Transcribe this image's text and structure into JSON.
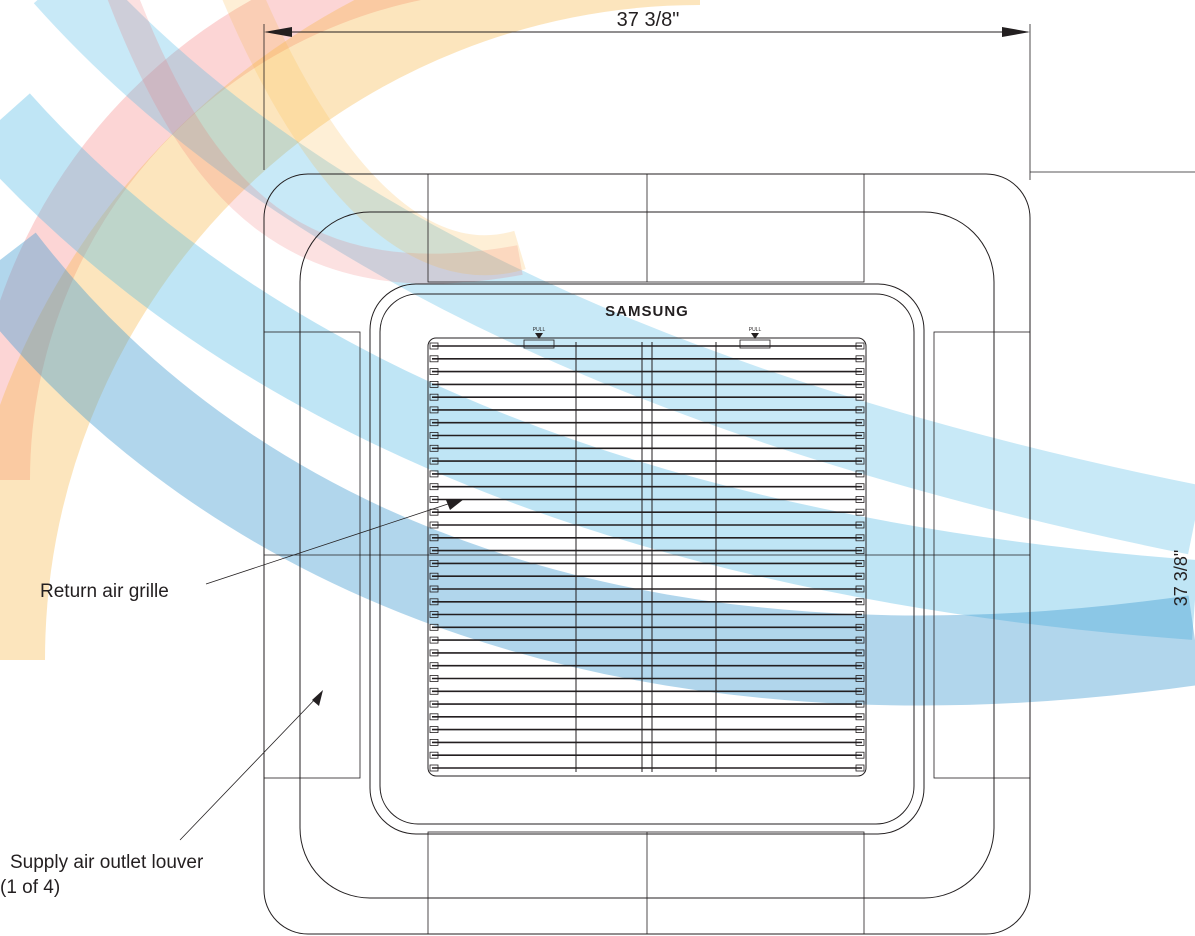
{
  "dimensions": {
    "width_label": "37 3/8\"",
    "height_label": "37 3/8\""
  },
  "labels": {
    "brand": "SAMSUNG",
    "return_air": "Return air grille",
    "supply_line1": "Supply air outlet louver",
    "supply_line2": "(1 of 4)",
    "pull_text": "PULL"
  },
  "colors": {
    "line": "#231f20",
    "watermark_blue": "#29a8df",
    "watermark_orange": "#f7a823",
    "watermark_red": "#ee3d3c"
  },
  "icons": {
    "pull_tab": "pull-tab-icon",
    "arrow": "arrowhead"
  }
}
